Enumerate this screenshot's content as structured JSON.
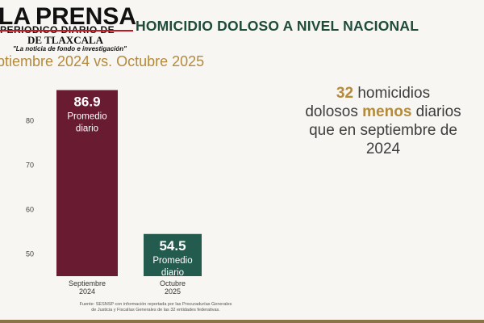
{
  "logo": {
    "name_left": "LA",
    "name_right": "PRENSA",
    "line2": "PERIODICO DIARIO DE",
    "place": "DE TLAXCALA",
    "slogan": "\"La noticia de fondo e investigación\""
  },
  "header": {
    "title": "HOMICIDIO DOLOSO A NIVEL NACIONAL",
    "subtitle": "ptiembre 2024 vs. Octubre 2025"
  },
  "annotation": {
    "number": "32",
    "text_a": " homicidios",
    "text_b": "dolosos ",
    "highlight": "menos",
    "text_c": " diarios",
    "text_d": "que en septiembre de",
    "text_e": "2024"
  },
  "source": "Fuente: SESNSP con información reportada por las Procuradurías Generales de Justicia y Fiscalías Generales de las 32 entidades federativas.",
  "chart_data": {
    "type": "bar",
    "title": "HOMICIDIO DOLOSO A NIVEL NACIONAL",
    "subtitle": "ptiembre 2024 vs. Octubre 2025",
    "categories": [
      "Septiembre\n2024",
      "Octubre\n2025"
    ],
    "category_lines": [
      [
        "Septiembre",
        "2024"
      ],
      [
        "Octubre",
        "2025"
      ]
    ],
    "values": [
      86.9,
      54.5
    ],
    "value_labels": [
      "86.9",
      "54.5"
    ],
    "bar_sublabels": [
      [
        "Promedio",
        "diario"
      ],
      [
        "Promedio",
        "diario"
      ]
    ],
    "bar_colors": [
      "#691b32",
      "#235b4e"
    ],
    "yticks": [
      50,
      60,
      70,
      80
    ],
    "ylim": [
      45,
      90
    ],
    "grid": false,
    "legend": "none"
  }
}
